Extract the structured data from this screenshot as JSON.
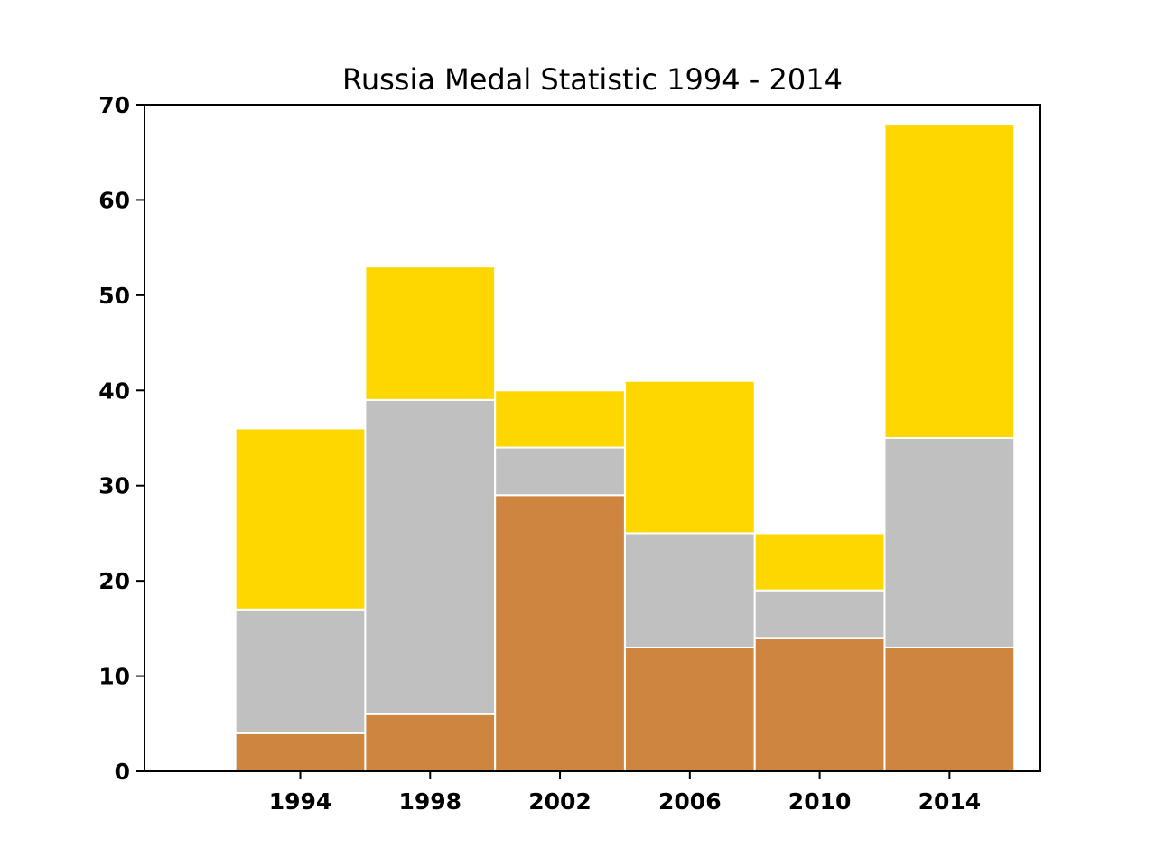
{
  "chart_data": {
    "type": "bar",
    "stacked": true,
    "title": "Russia Medal Statistic 1994 - 2014",
    "xlabel": "",
    "ylabel": "",
    "categories": [
      "1994",
      "1998",
      "2002",
      "2006",
      "2010",
      "2014"
    ],
    "x_values": [
      1994,
      1998,
      2002,
      2006,
      2010,
      2014
    ],
    "bar_width_years": 4,
    "xlim": [
      1989.2,
      2016.8
    ],
    "ylim": [
      0,
      70
    ],
    "yticks": [
      0,
      10,
      20,
      30,
      40,
      50,
      60,
      70
    ],
    "grid": false,
    "series": [
      {
        "color": "#cd853f",
        "values": [
          4,
          6,
          29,
          13,
          14,
          13
        ]
      },
      {
        "color": "#c0c0c0",
        "values": [
          13,
          33,
          5,
          12,
          5,
          22
        ]
      },
      {
        "color": "#ffd700",
        "values": [
          19,
          14,
          6,
          16,
          6,
          33
        ]
      }
    ]
  }
}
